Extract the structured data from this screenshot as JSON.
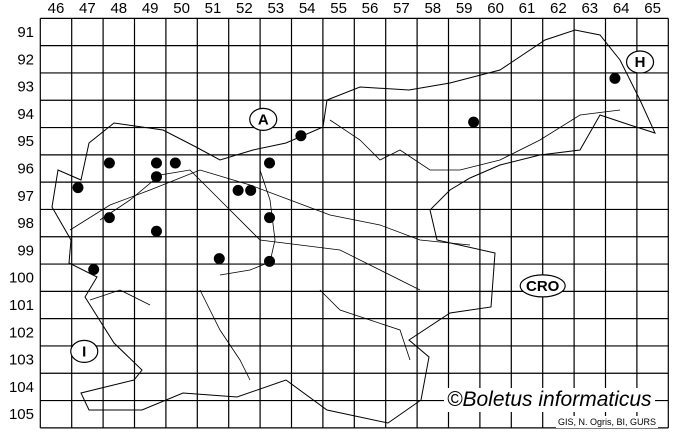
{
  "map": {
    "columns": [
      "46",
      "47",
      "48",
      "49",
      "50",
      "51",
      "52",
      "53",
      "54",
      "55",
      "56",
      "57",
      "58",
      "59",
      "60",
      "61",
      "62",
      "63",
      "64",
      "65"
    ],
    "rows": [
      "91",
      "92",
      "93",
      "94",
      "95",
      "96",
      "97",
      "98",
      "99",
      "100",
      "101",
      "102",
      "103",
      "104",
      "105"
    ],
    "country_labels": [
      {
        "text": "A",
        "x": 52.6,
        "y": 94.2
      },
      {
        "text": "H",
        "x": 64.6,
        "y": 92.1
      },
      {
        "text": "CRO",
        "x": 61.5,
        "y": 100.3
      },
      {
        "text": "I",
        "x": 46.9,
        "y": 102.7
      }
    ],
    "occurrences": [
      {
        "x": 47.7,
        "y": 95.8
      },
      {
        "x": 49.2,
        "y": 95.8
      },
      {
        "x": 49.8,
        "y": 95.8
      },
      {
        "x": 49.2,
        "y": 96.3
      },
      {
        "x": 46.7,
        "y": 96.7
      },
      {
        "x": 51.8,
        "y": 96.8
      },
      {
        "x": 52.2,
        "y": 96.8
      },
      {
        "x": 52.8,
        "y": 95.8
      },
      {
        "x": 53.8,
        "y": 94.8
      },
      {
        "x": 59.3,
        "y": 94.3
      },
      {
        "x": 63.8,
        "y": 92.7
      },
      {
        "x": 47.7,
        "y": 97.8
      },
      {
        "x": 49.2,
        "y": 98.3
      },
      {
        "x": 52.8,
        "y": 97.8
      },
      {
        "x": 51.2,
        "y": 99.3
      },
      {
        "x": 52.8,
        "y": 99.4
      },
      {
        "x": 47.2,
        "y": 99.7
      }
    ],
    "dot_color": "#000000"
  },
  "credit": "©Boletus informaticus",
  "source": "GIS, N. Ogris, BI, GURS"
}
